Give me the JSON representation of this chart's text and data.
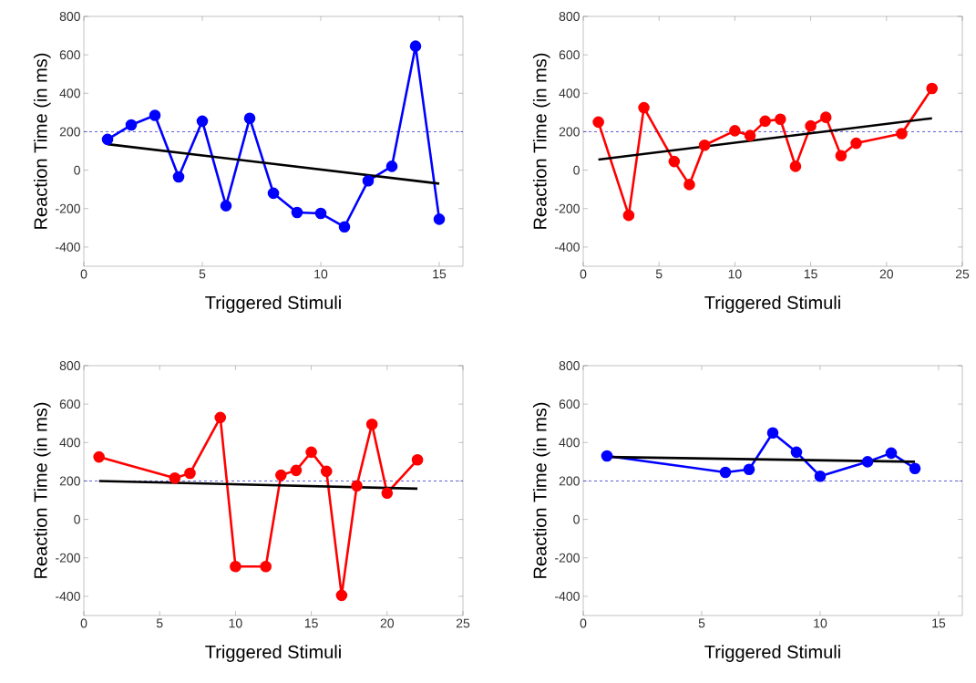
{
  "chart_data": [
    {
      "type": "line",
      "xlabel": "Triggered Stimuli",
      "ylabel": "Reaction Time (in ms)",
      "xlim": [
        0,
        16
      ],
      "ylim": [
        -500,
        800
      ],
      "xticks": [
        0,
        5,
        10,
        15
      ],
      "yticks": [
        -400,
        -200,
        0,
        200,
        400,
        600,
        800
      ],
      "series": [
        {
          "color": "#0000ff",
          "marker": "circle",
          "x": [
            1,
            2,
            3,
            4,
            5,
            6,
            7,
            8,
            9,
            10,
            11,
            12,
            13,
            14,
            15
          ],
          "values": [
            160,
            235,
            285,
            -35,
            255,
            -185,
            270,
            -120,
            -220,
            -225,
            -295,
            -55,
            20,
            645,
            -255
          ]
        },
        {
          "color": "#000000",
          "marker": "none",
          "x": [
            1,
            15
          ],
          "values": [
            135,
            -70
          ]
        }
      ],
      "ref_lines": [
        {
          "axis": "y",
          "value": 200,
          "color": "#3333cc",
          "line_style": "dashed"
        }
      ]
    },
    {
      "type": "line",
      "xlabel": "Triggered Stimuli",
      "ylabel": "Reaction Time (in ms)",
      "xlim": [
        0,
        25
      ],
      "ylim": [
        -500,
        800
      ],
      "xticks": [
        0,
        5,
        10,
        15,
        20,
        25
      ],
      "yticks": [
        -400,
        -200,
        0,
        200,
        400,
        600,
        800
      ],
      "series": [
        {
          "color": "#ff0000",
          "marker": "circle",
          "x": [
            1,
            3,
            4,
            6,
            7,
            8,
            10,
            11,
            12,
            13,
            14,
            15,
            16,
            17,
            18,
            21,
            23
          ],
          "values": [
            250,
            -235,
            325,
            45,
            -75,
            130,
            205,
            180,
            255,
            265,
            20,
            230,
            275,
            75,
            140,
            190,
            425
          ]
        },
        {
          "color": "#000000",
          "marker": "none",
          "x": [
            1,
            23
          ],
          "values": [
            55,
            270
          ]
        }
      ],
      "ref_lines": [
        {
          "axis": "y",
          "value": 200,
          "color": "#3333cc",
          "line_style": "dashed"
        }
      ]
    },
    {
      "type": "line",
      "xlabel": "Triggered Stimuli",
      "ylabel": "Reaction Time (in ms)",
      "xlim": [
        0,
        25
      ],
      "ylim": [
        -500,
        800
      ],
      "xticks": [
        0,
        5,
        10,
        15,
        20,
        25
      ],
      "yticks": [
        -400,
        -200,
        0,
        200,
        400,
        600,
        800
      ],
      "series": [
        {
          "color": "#ff0000",
          "marker": "circle",
          "x": [
            1,
            6,
            7,
            9,
            10,
            12,
            13,
            14,
            15,
            16,
            17,
            18,
            19,
            20,
            22
          ],
          "values": [
            325,
            215,
            240,
            530,
            -245,
            -245,
            230,
            255,
            350,
            250,
            -395,
            175,
            495,
            137,
            310
          ]
        },
        {
          "color": "#000000",
          "marker": "none",
          "x": [
            1,
            22
          ],
          "values": [
            200,
            160
          ]
        }
      ],
      "ref_lines": [
        {
          "axis": "y",
          "value": 200,
          "color": "#3333cc",
          "line_style": "dashed"
        }
      ]
    },
    {
      "type": "line",
      "xlabel": "Triggered Stimuli",
      "ylabel": "Reaction Time (in ms)",
      "xlim": [
        0,
        16
      ],
      "ylim": [
        -500,
        800
      ],
      "xticks": [
        0,
        5,
        10,
        15
      ],
      "yticks": [
        -400,
        -200,
        0,
        200,
        400,
        600,
        800
      ],
      "series": [
        {
          "color": "#0000ff",
          "marker": "circle",
          "x": [
            1,
            6,
            7,
            8,
            9,
            10,
            12,
            13,
            14
          ],
          "values": [
            330,
            245,
            260,
            450,
            350,
            225,
            300,
            345,
            265
          ]
        },
        {
          "color": "#000000",
          "marker": "none",
          "x": [
            1,
            14
          ],
          "values": [
            325,
            300
          ]
        }
      ],
      "ref_lines": [
        {
          "axis": "y",
          "value": 200,
          "color": "#3333cc",
          "line_style": "dashed"
        }
      ]
    }
  ]
}
